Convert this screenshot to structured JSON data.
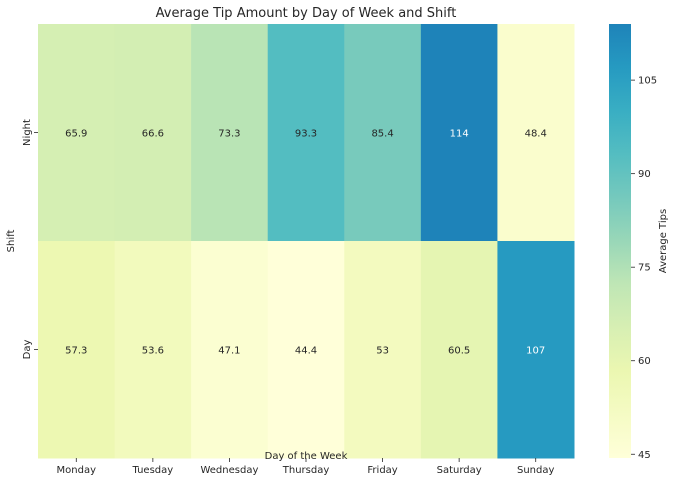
{
  "chart_data": {
    "type": "heatmap",
    "title": "Average Tip Amount by Day of Week and Shift",
    "xlabel": "Day of the Week",
    "ylabel": "Shift",
    "x_categories": [
      "Monday",
      "Tuesday",
      "Wednesday",
      "Thursday",
      "Friday",
      "Saturday",
      "Sunday"
    ],
    "y_categories": [
      "Night",
      "Day"
    ],
    "values": [
      [
        65.9,
        66.6,
        73.3,
        93.3,
        85.4,
        114,
        48.4
      ],
      [
        57.3,
        53.6,
        47.1,
        44.4,
        53,
        60.5,
        107
      ]
    ],
    "cell_labels": [
      [
        "65.9",
        "66.6",
        "73.3",
        "93.3",
        "85.4",
        "114",
        "48.4"
      ],
      [
        "57.3",
        "53.6",
        "47.1",
        "44.4",
        "53",
        "60.5",
        "107"
      ]
    ],
    "colormap": "YlGnBu",
    "colorbar": {
      "label": "Average Tips",
      "range": [
        44.4,
        114
      ],
      "ticks": [
        45,
        60,
        75,
        90,
        105
      ],
      "tick_labels": [
        "45",
        "60",
        "75",
        "90",
        "105"
      ]
    },
    "colors": {
      "light_text": "#ffffff",
      "dark_text": "#262626"
    }
  }
}
